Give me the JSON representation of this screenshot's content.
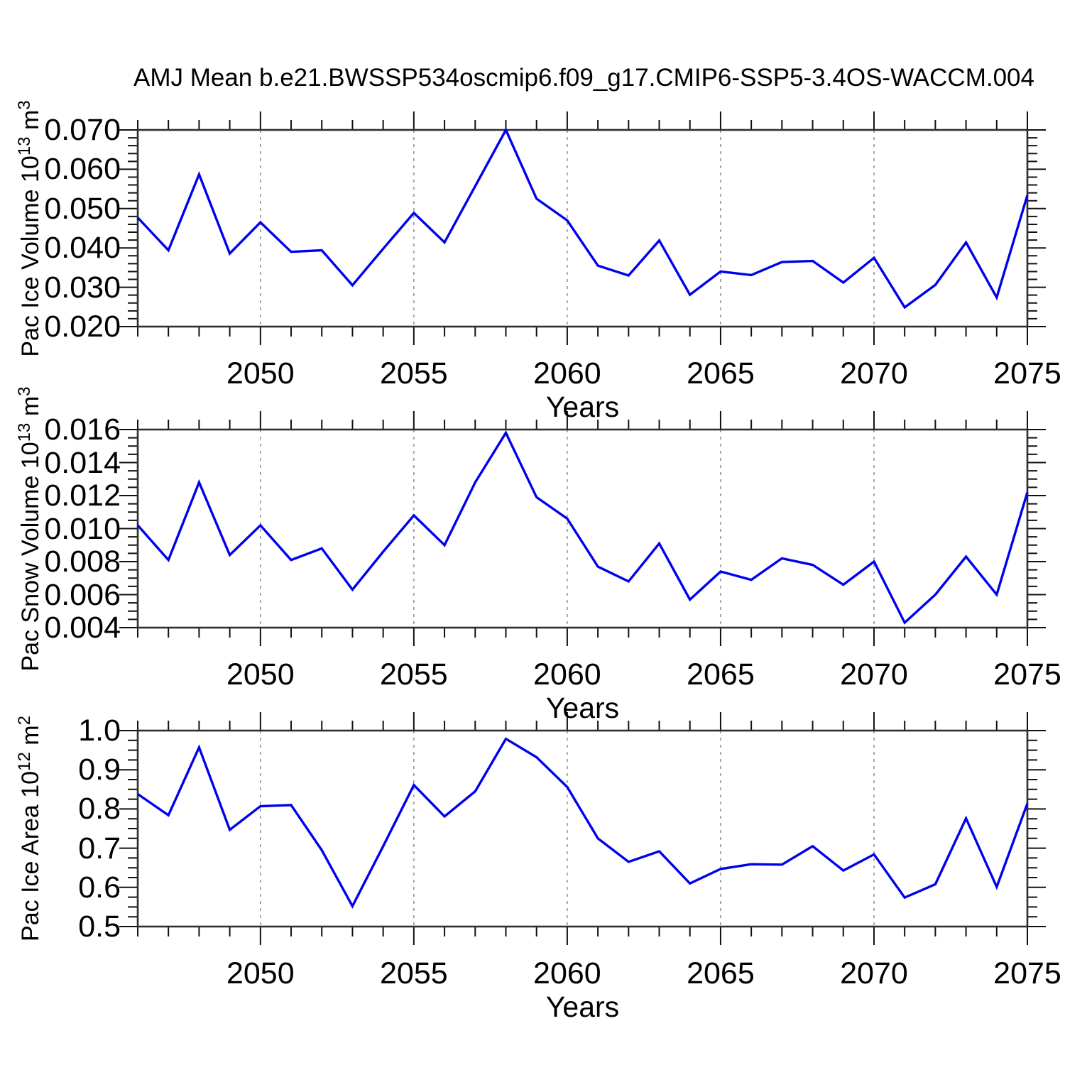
{
  "title": "AMJ Mean b.e21.BWSSP534oscmip6.f09_g17.CMIP6-SSP5-3.4OS-WACCM.004",
  "colors": {
    "line": "#0000EE",
    "grid": "#9a9a9a",
    "frame": "#2e2e2e",
    "tick": "#111111",
    "text": "#000000",
    "background": "#ffffff"
  },
  "x_axis": {
    "label": "Years",
    "range": [
      2046,
      2075
    ],
    "tick_years": [
      2050,
      2055,
      2060,
      2065,
      2070,
      2075
    ],
    "tick_labels": [
      "2050",
      "2055",
      "2060",
      "2065",
      "2070",
      "2075"
    ],
    "grid_years": [
      2050,
      2055,
      2060,
      2065,
      2070
    ],
    "minor_step_years": 1
  },
  "years": [
    2046,
    2047,
    2048,
    2049,
    2050,
    2051,
    2052,
    2053,
    2054,
    2055,
    2056,
    2057,
    2058,
    2059,
    2060,
    2061,
    2062,
    2063,
    2064,
    2065,
    2066,
    2067,
    2068,
    2069,
    2070,
    2071,
    2072,
    2073,
    2074,
    2075
  ],
  "chart_data": [
    {
      "type": "line",
      "title": "",
      "ylabel_plain": "Pac Ice Volume 10^13 m^3",
      "ylabel_parts": {
        "base": "Pac Ice Volume 10",
        "exp": "13",
        "unit": " m",
        "unit_exp": "3"
      },
      "xlabel": "Years",
      "ylim": [
        0.02,
        0.07
      ],
      "y_major_ticks": [
        0.02,
        0.03,
        0.04,
        0.05,
        0.06,
        0.07
      ],
      "y_tick_labels": [
        "0.020",
        "0.030",
        "0.040",
        "0.050",
        "0.060",
        "0.070"
      ],
      "y_minor_step": 0.002,
      "values": [
        0.0477,
        0.0394,
        0.0587,
        0.0386,
        0.0465,
        0.039,
        0.0394,
        0.0305,
        0.0398,
        0.0489,
        0.0414,
        0.0557,
        0.07,
        0.0525,
        0.047,
        0.0355,
        0.033,
        0.0419,
        0.0281,
        0.034,
        0.0331,
        0.0364,
        0.0367,
        0.0312,
        0.0375,
        0.0249,
        0.0306,
        0.0414,
        0.0274,
        0.0534
      ]
    },
    {
      "type": "line",
      "title": "",
      "ylabel_plain": "Pac Snow Volume 10^13 m^3",
      "ylabel_parts": {
        "base": "Pac Snow Volume 10",
        "exp": "13",
        "unit": " m",
        "unit_exp": "3"
      },
      "xlabel": "Years",
      "ylim": [
        0.004,
        0.016
      ],
      "y_major_ticks": [
        0.004,
        0.006,
        0.008,
        0.01,
        0.012,
        0.014,
        0.016
      ],
      "y_tick_labels": [
        "0.004",
        "0.006",
        "0.008",
        "0.010",
        "0.012",
        "0.014",
        "0.016"
      ],
      "y_minor_step": 0.0005,
      "values": [
        0.0102,
        0.0081,
        0.0128,
        0.0084,
        0.0102,
        0.0081,
        0.0088,
        0.0063,
        0.0086,
        0.0108,
        0.009,
        0.0128,
        0.0158,
        0.0119,
        0.0106,
        0.0077,
        0.0068,
        0.0091,
        0.0057,
        0.0074,
        0.0069,
        0.0082,
        0.0078,
        0.0066,
        0.008,
        0.0043,
        0.006,
        0.0083,
        0.006,
        0.0122
      ]
    },
    {
      "type": "line",
      "title": "",
      "ylabel_plain": "Pac Ice Area 10^12 m^2",
      "ylabel_parts": {
        "base": "Pac Ice Area 10",
        "exp": "12",
        "unit": " m",
        "unit_exp": "2"
      },
      "xlabel": "Years",
      "ylim": [
        0.5,
        1.0
      ],
      "y_major_ticks": [
        0.5,
        0.6,
        0.7,
        0.8,
        0.9,
        1.0
      ],
      "y_tick_labels": [
        "0.5",
        "0.6",
        "0.7",
        "0.8",
        "0.9",
        "1.0"
      ],
      "y_minor_step": 0.025,
      "values": [
        0.838,
        0.784,
        0.957,
        0.747,
        0.807,
        0.81,
        0.695,
        0.552,
        0.705,
        0.861,
        0.781,
        0.845,
        0.979,
        0.932,
        0.856,
        0.725,
        0.665,
        0.692,
        0.61,
        0.647,
        0.659,
        0.658,
        0.705,
        0.643,
        0.684,
        0.574,
        0.608,
        0.776,
        0.601,
        0.814
      ]
    }
  ]
}
